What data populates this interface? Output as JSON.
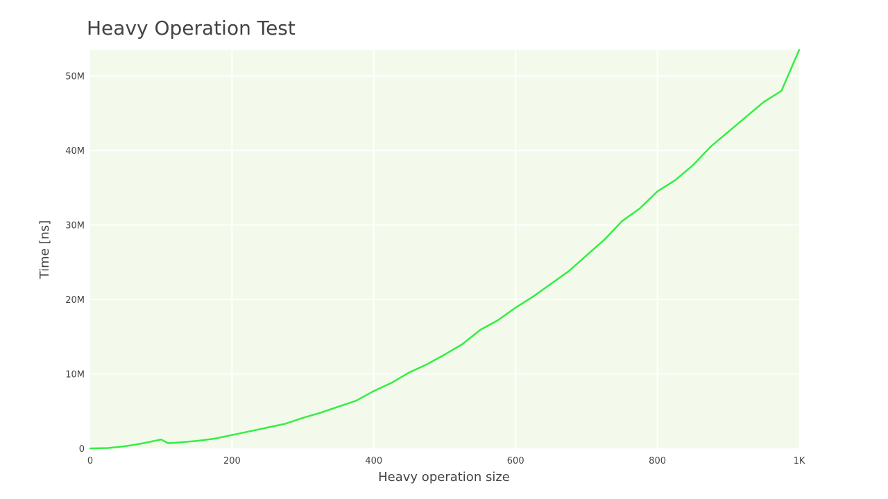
{
  "chart_data": {
    "type": "line",
    "title": "Heavy Operation Test",
    "xlabel": "Heavy operation size",
    "ylabel": "Time [ns]",
    "xlim": [
      0,
      1000
    ],
    "ylim": [
      0,
      53500000
    ],
    "x_ticks": [
      0,
      200,
      400,
      600,
      800,
      1000
    ],
    "x_tick_labels": [
      "0",
      "200",
      "400",
      "600",
      "800",
      "1K"
    ],
    "y_ticks": [
      0,
      10000000,
      20000000,
      30000000,
      40000000,
      50000000
    ],
    "y_tick_labels": [
      "0",
      "10M",
      "20M",
      "30M",
      "40M",
      "50M"
    ],
    "grid": true,
    "legend": "none",
    "plot_background": "#f3faeb",
    "grid_color": "#ffffff",
    "series_color": "#33ee44",
    "series": [
      {
        "x": [
          0,
          25,
          50,
          75,
          95,
          100,
          110,
          125,
          150,
          175,
          200,
          225,
          250,
          275,
          300,
          325,
          350,
          375,
          400,
          425,
          450,
          475,
          500,
          525,
          550,
          575,
          600,
          625,
          650,
          675,
          700,
          725,
          750,
          775,
          800,
          825,
          850,
          875,
          900,
          925,
          950,
          975,
          1000
        ],
        "y": [
          0,
          50000,
          300000,
          700000,
          1100000,
          1200000,
          700000,
          800000,
          1000000,
          1300000,
          1800000,
          2300000,
          2800000,
          3300000,
          4100000,
          4800000,
          5600000,
          6400000,
          7700000,
          8800000,
          10200000,
          11300000,
          12600000,
          14000000,
          15900000,
          17200000,
          18900000,
          20400000,
          22100000,
          23800000,
          25900000,
          28000000,
          30500000,
          32200000,
          34500000,
          36000000,
          38000000,
          40500000,
          42500000,
          44500000,
          46500000,
          48000000,
          53500000
        ]
      }
    ]
  }
}
